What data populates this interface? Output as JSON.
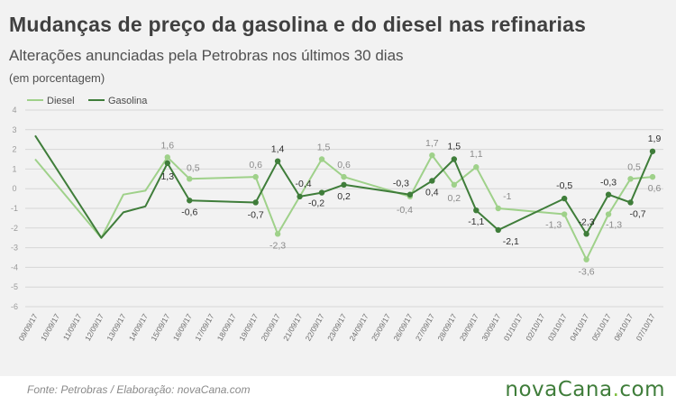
{
  "header": {
    "title": "Mudanças de preço da gasolina e do diesel nas refinarias",
    "subtitle": "Alterações anunciadas pela Petrobras nos últimos 30 dias",
    "unit": "(em porcentagem)"
  },
  "footer": {
    "source": "Fonte:  Petrobras   / Elaboração:  novaCana.com",
    "brand_main": "novaCana",
    "brand_dot": ".",
    "brand_tld": "com"
  },
  "colors": {
    "diesel": "#9fd18a",
    "gasolina": "#3f7d3a",
    "grid": "#d6d6d6",
    "axis_text": "#9a9a9a"
  },
  "chart_data": {
    "type": "line",
    "legend_position": "top-left",
    "grid": true,
    "ylim": [
      -6,
      4
    ],
    "yticks": [
      4,
      3,
      2,
      1,
      0,
      -1,
      -2,
      -3,
      -4,
      -5,
      -6
    ],
    "categories": [
      "09/09/17",
      "10/09/17",
      "11/09/17",
      "12/09/17",
      "13/09/17",
      "14/09/17",
      "15/09/17",
      "16/09/17",
      "17/09/17",
      "18/09/17",
      "19/09/17",
      "20/09/17",
      "21/09/17",
      "22/09/17",
      "23/09/17",
      "24/09/17",
      "25/09/17",
      "26/09/17",
      "27/09/17",
      "28/09/17",
      "29/09/17",
      "30/09/17",
      "01/10/17",
      "02/10/17",
      "03/10/17",
      "04/10/17",
      "05/10/17",
      "06/10/17",
      "07/10/17"
    ],
    "series": [
      {
        "name": "Diesel",
        "points": [
          {
            "x": "09/09/17",
            "y": 1.5
          },
          {
            "x": "12/09/17",
            "y": -2.5
          },
          {
            "x": "13/09/17",
            "y": -0.3
          },
          {
            "x": "14/09/17",
            "y": -0.1
          },
          {
            "x": "15/09/17",
            "y": 1.6,
            "label": "1,6"
          },
          {
            "x": "16/09/17",
            "y": 0.5,
            "label": "0,5"
          },
          {
            "x": "19/09/17",
            "y": 0.6,
            "label": "0,6"
          },
          {
            "x": "20/09/17",
            "y": -2.3,
            "label": "-2,3"
          },
          {
            "x": "22/09/17",
            "y": 1.5,
            "label": "1,5"
          },
          {
            "x": "23/09/17",
            "y": 0.6,
            "label": "0,6"
          },
          {
            "x": "26/09/17",
            "y": -0.4,
            "label": "-0,4"
          },
          {
            "x": "27/09/17",
            "y": 1.7,
            "label": "1,7"
          },
          {
            "x": "28/09/17",
            "y": 0.2,
            "label": "0,2"
          },
          {
            "x": "29/09/17",
            "y": 1.1,
            "label": "1,1"
          },
          {
            "x": "30/09/17",
            "y": -1.0,
            "label": "-1"
          },
          {
            "x": "03/10/17",
            "y": -1.3,
            "label": "-1,3"
          },
          {
            "x": "04/10/17",
            "y": -3.6,
            "label": "-3,6"
          },
          {
            "x": "05/10/17",
            "y": -1.3,
            "label": "-1,3"
          },
          {
            "x": "06/10/17",
            "y": 0.5,
            "label": "0,5"
          },
          {
            "x": "07/10/17",
            "y": 0.6,
            "label": "0,6"
          }
        ]
      },
      {
        "name": "Gasolina",
        "points": [
          {
            "x": "09/09/17",
            "y": 2.7
          },
          {
            "x": "12/09/17",
            "y": -2.5
          },
          {
            "x": "13/09/17",
            "y": -1.2
          },
          {
            "x": "14/09/17",
            "y": -0.9
          },
          {
            "x": "15/09/17",
            "y": 1.3,
            "label": "1,3"
          },
          {
            "x": "16/09/17",
            "y": -0.6,
            "label": "-0,6"
          },
          {
            "x": "19/09/17",
            "y": -0.7,
            "label": "-0,7"
          },
          {
            "x": "20/09/17",
            "y": 1.4,
            "label": "1,4"
          },
          {
            "x": "21/09/17",
            "y": -0.4,
            "label": "-0,4"
          },
          {
            "x": "22/09/17",
            "y": -0.2,
            "label": "-0,2"
          },
          {
            "x": "23/09/17",
            "y": 0.2,
            "label": "0,2"
          },
          {
            "x": "26/09/17",
            "y": -0.3,
            "label": "-0,3"
          },
          {
            "x": "27/09/17",
            "y": 0.4,
            "label": "0,4"
          },
          {
            "x": "28/09/17",
            "y": 1.5,
            "label": "1,5"
          },
          {
            "x": "29/09/17",
            "y": -1.1,
            "label": "-1,1"
          },
          {
            "x": "30/09/17",
            "y": -2.1,
            "label": "-2,1"
          },
          {
            "x": "03/10/17",
            "y": -0.5,
            "label": "-0,5"
          },
          {
            "x": "04/10/17",
            "y": -2.3,
            "label": "-2,3"
          },
          {
            "x": "05/10/17",
            "y": -0.3,
            "label": "-0,3"
          },
          {
            "x": "06/10/17",
            "y": -0.7,
            "label": "-0,7"
          },
          {
            "x": "07/10/17",
            "y": 1.9,
            "label": "1,9"
          }
        ]
      }
    ]
  }
}
